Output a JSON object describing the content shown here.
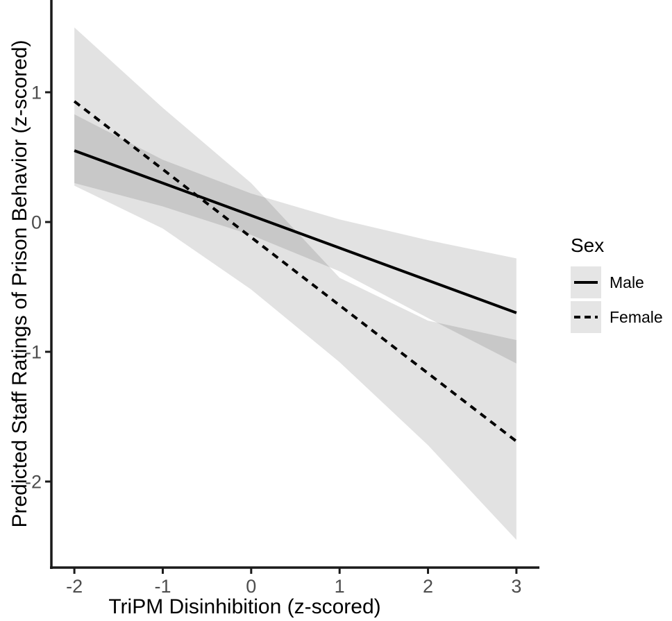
{
  "chart_data": {
    "type": "line",
    "title": "",
    "xlabel": "TriPM Disinhibition (z-scored)",
    "ylabel": "Predicted Staff Ratings of Prison Behavior (z-scored)",
    "xlim": [
      -2.26,
      3.26
    ],
    "ylim": [
      -2.663,
      1.711
    ],
    "grid": false,
    "xticks": {
      "values": [
        -2,
        -1,
        0,
        1,
        2,
        3
      ],
      "labels": [
        "-2",
        "-1",
        "0",
        "1",
        "2",
        "3"
      ]
    },
    "yticks": {
      "values": [
        1,
        0,
        -1,
        -2
      ],
      "labels": [
        "1",
        "0",
        "-1",
        "-2"
      ]
    },
    "series": [
      {
        "name": "Male",
        "dash": "solid",
        "x": [
          -2,
          3
        ],
        "y": [
          0.55,
          -0.7
        ],
        "ci": {
          "x": [
            -2,
            -1,
            0,
            1,
            2,
            3
          ],
          "upper": [
            0.83,
            0.48,
            0.22,
            0.02,
            -0.14,
            -0.28
          ],
          "lower": [
            0.3,
            0.12,
            -0.1,
            -0.38,
            -0.74,
            -1.09
          ]
        }
      },
      {
        "name": "Female",
        "dash": "dashed",
        "x": [
          -2,
          3
        ],
        "y": [
          0.93,
          -1.69
        ],
        "ci": {
          "x": [
            -2,
            -1,
            0,
            1,
            2,
            3
          ],
          "upper": [
            1.5,
            0.88,
            0.3,
            -0.43,
            -0.76,
            -0.91
          ],
          "lower": [
            0.28,
            -0.05,
            -0.52,
            -1.08,
            -1.72,
            -2.45
          ]
        }
      }
    ],
    "colors": {
      "line": "#000000",
      "ribbon_fill": "#000000",
      "ribbon_opacity": 0.115,
      "axis_line": "#1a1a1a",
      "tick_label": "#4d4d4d",
      "axis_title": "#000000"
    },
    "legend_position": "right"
  },
  "legend": {
    "title": "Sex",
    "items": [
      {
        "label": "Male",
        "line": "solid"
      },
      {
        "label": "Female",
        "line": "dashed"
      }
    ]
  }
}
